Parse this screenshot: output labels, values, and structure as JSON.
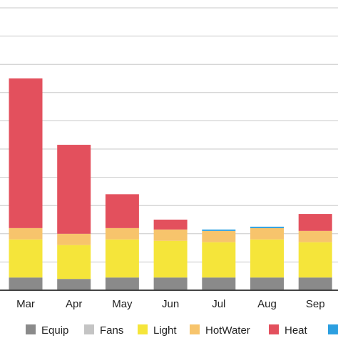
{
  "chart_data": {
    "type": "bar",
    "stacked": true,
    "categories": [
      "Mar",
      "Apr",
      "May",
      "Jun",
      "Jul",
      "Aug",
      "Sep"
    ],
    "series": [
      {
        "name": "Equip",
        "color": "#8a8a8a",
        "values": [
          9,
          8,
          9,
          9,
          9,
          9,
          9
        ]
      },
      {
        "name": "Fans",
        "color": "#c4c4c4",
        "values": [
          0,
          0,
          0,
          0,
          0,
          0,
          0
        ]
      },
      {
        "name": "Light",
        "color": "#f5e53a",
        "values": [
          27,
          24,
          27,
          26,
          25,
          27,
          25
        ]
      },
      {
        "name": "HotWater",
        "color": "#f7c46c",
        "values": [
          8,
          8,
          8,
          8,
          8,
          8,
          8
        ]
      },
      {
        "name": "Heat",
        "color": "#e3505d",
        "values": [
          106,
          63,
          24,
          7,
          0,
          0,
          12
        ]
      },
      {
        "name": "",
        "color": "#2c9fe0",
        "values": [
          0,
          0,
          0,
          0,
          1,
          1,
          0
        ]
      }
    ],
    "ylim": [
      0,
      200
    ],
    "grid": true,
    "legend_position": "bottom"
  }
}
